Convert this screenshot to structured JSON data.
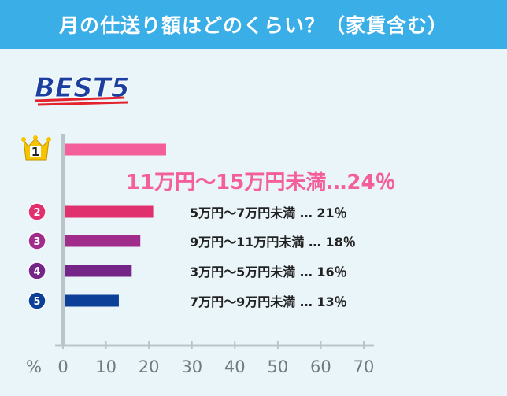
{
  "header": {
    "title": "月の仕送り額はどのくらい？（家賃含む）"
  },
  "badge": {
    "label": "BEST5"
  },
  "colors": {
    "header_bg": "#3aaee6",
    "background": "#eaf5fa",
    "rank1": "#f45e9a",
    "rank2": "#e0306e",
    "rank3": "#a02d8b",
    "rank4": "#752587",
    "rank5": "#0c3f97",
    "crown": "#f7c400",
    "best": "#1a3fa0",
    "underline": "#e5232c",
    "top_label": "#f45e9a"
  },
  "chart_data": {
    "type": "bar",
    "orientation": "horizontal",
    "title": "月の仕送り額はどのくらい？（家賃含む）",
    "xlabel": "%",
    "xlim": [
      0,
      70
    ],
    "xticks": [
      "0",
      "10",
      "20",
      "30",
      "40",
      "50",
      "60",
      "70"
    ],
    "grid": false,
    "ranks": [
      "1",
      "2",
      "3",
      "4",
      "5"
    ],
    "categories": [
      "11万円～15万円未満",
      "5万円～7万円未満",
      "9万円～11万円未満",
      "3万円～5万円未満",
      "7万円～9万円未満"
    ],
    "values": [
      24,
      21,
      18,
      16,
      13
    ],
    "labels": [
      "11万円～15万円未満…24％",
      "5万円～7万円未満 … 21％",
      "9万円～11万円未満 … 18％",
      "3万円～5万円未満 … 16％",
      "7万円～9万円未満 … 13％"
    ]
  }
}
